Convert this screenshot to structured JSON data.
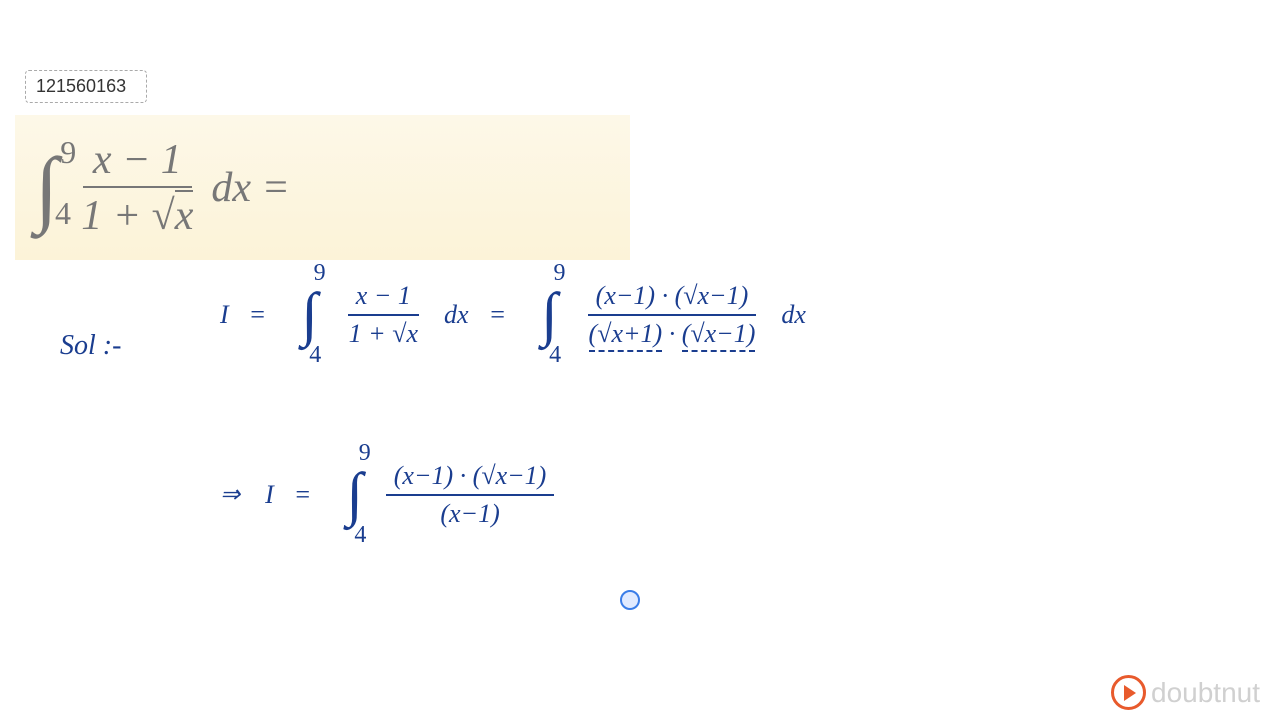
{
  "question_id": "121560163",
  "formula": {
    "integral_upper": "9",
    "integral_lower": "4",
    "numerator": "x − 1",
    "denominator_prefix": "1 + ",
    "denominator_sqrt": "x",
    "suffix": "dx =",
    "colors": {
      "text": "#777777",
      "background": "#fdf8e8"
    },
    "fontsize": 42
  },
  "solution": {
    "label": "Sol :-",
    "color": "#1a3d8f",
    "line1": {
      "lhs": "I",
      "int_upper": "9",
      "int_lower": "4",
      "frac1_num": "x − 1",
      "frac1_den": "1 + √x",
      "dx1": "dx",
      "frac2_num": "(x−1) · (√x−1)",
      "frac2_den_p1": "(√x+1)",
      "frac2_den_dot": " · ",
      "frac2_den_p2": "(√x−1)",
      "dx2": "dx"
    },
    "line2": {
      "arrow": "⇒",
      "lhs": "I",
      "int_upper": "9",
      "int_lower": "4",
      "frac_num": "(x−1) · (√x−1)",
      "frac_den": "(x−1)"
    }
  },
  "logo": {
    "text": "doubtnut",
    "icon_color": "#e85a2c",
    "text_color": "#d0d0d0"
  }
}
